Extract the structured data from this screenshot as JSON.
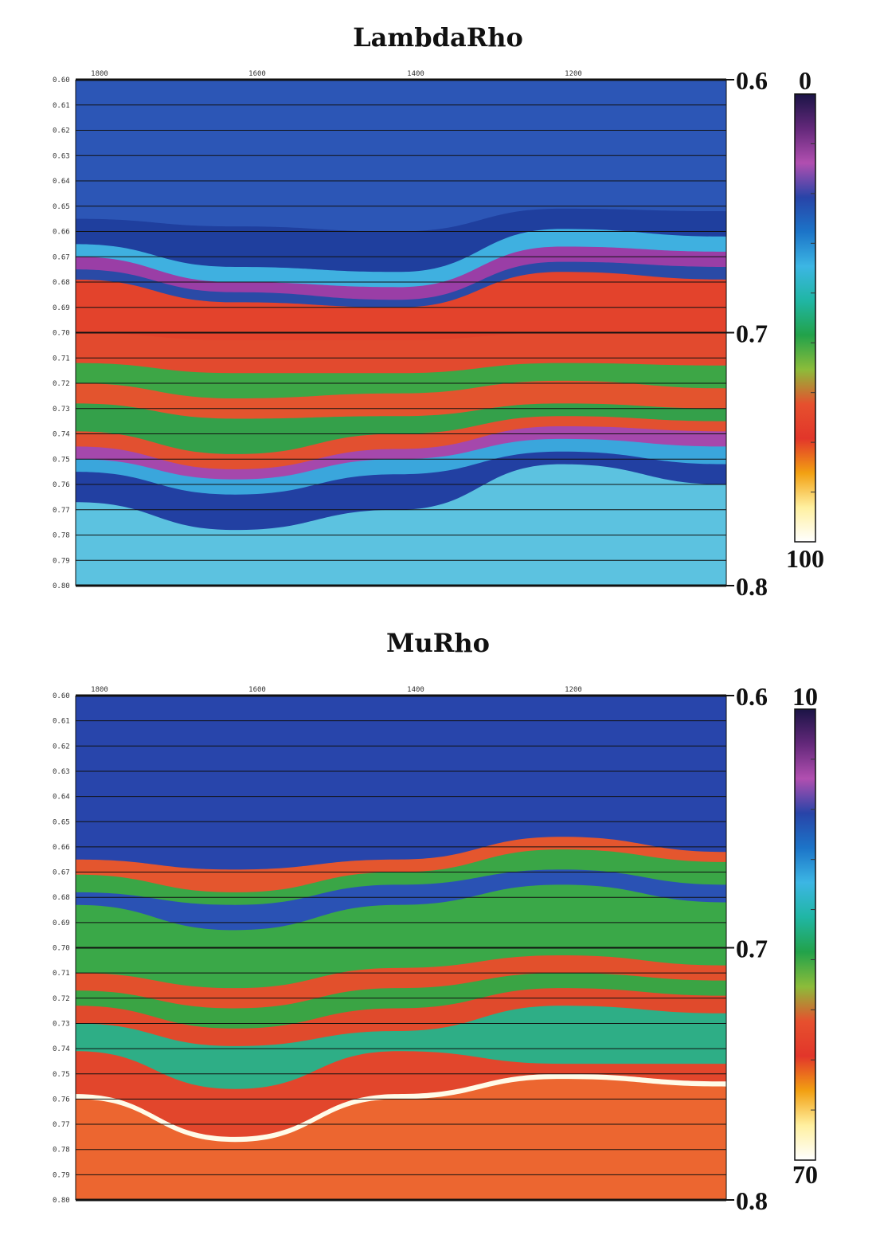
{
  "chart_data": [
    {
      "type": "heatmap",
      "title": "LambdaRho",
      "x_ticks": [
        "1800",
        "1600",
        "1400",
        "1200"
      ],
      "y_range": [
        0.6,
        0.8
      ],
      "y_ticks_small": [
        "0.60",
        "0.61",
        "0.62",
        "0.63",
        "0.64",
        "0.65",
        "0.66",
        "0.67",
        "0.68",
        "0.69",
        "0.70",
        "0.71",
        "0.72",
        "0.73",
        "0.74",
        "0.75",
        "0.76",
        "0.77",
        "0.78",
        "0.79",
        "0.80"
      ],
      "y_ticks_major": [
        "0.6",
        "0.7",
        "0.8"
      ],
      "colorbar": {
        "min": "0",
        "max": "100",
        "scale": [
          "#1b1446",
          "#63287a",
          "#b14fb0",
          "#2844a8",
          "#1c74c8",
          "#3cb6e4",
          "#20b6a4",
          "#22a24a",
          "#8cbc3a",
          "#e6502e",
          "#e2362a",
          "#f2a012",
          "#fff0a0",
          "#ffffff"
        ]
      },
      "layers": [
        {
          "y": [
            0.6,
            0.6,
            0.6,
            0.6,
            0.6
          ],
          "color": "#2c56b6"
        },
        {
          "y": [
            0.655,
            0.658,
            0.66,
            0.651,
            0.652
          ],
          "color": "#1f3f9e"
        },
        {
          "y": [
            0.665,
            0.674,
            0.676,
            0.659,
            0.662
          ],
          "color": "#3fb0e0"
        },
        {
          "y": [
            0.67,
            0.68,
            0.682,
            0.666,
            0.668
          ],
          "color": "#9a3ea6"
        },
        {
          "y": [
            0.675,
            0.684,
            0.687,
            0.672,
            0.674
          ],
          "color": "#2a4aa6"
        },
        {
          "y": [
            0.679,
            0.688,
            0.69,
            0.676,
            0.679
          ],
          "color": "#e3432c"
        },
        {
          "y": [
            0.7,
            0.703,
            0.703,
            0.7,
            0.7
          ],
          "color": "#e24a2e"
        },
        {
          "y": [
            0.712,
            0.716,
            0.716,
            0.712,
            0.713
          ],
          "color": "#3da646"
        },
        {
          "y": [
            0.72,
            0.726,
            0.724,
            0.719,
            0.722
          ],
          "color": "#e3542e"
        },
        {
          "y": [
            0.728,
            0.734,
            0.733,
            0.728,
            0.73
          ],
          "color": "#34a04a"
        },
        {
          "y": [
            0.739,
            0.748,
            0.74,
            0.733,
            0.735
          ],
          "color": "#e25030"
        },
        {
          "y": [
            0.745,
            0.754,
            0.746,
            0.737,
            0.739
          ],
          "color": "#a548ac"
        },
        {
          "y": [
            0.75,
            0.758,
            0.75,
            0.742,
            0.745
          ],
          "color": "#3aa6dc"
        },
        {
          "y": [
            0.755,
            0.764,
            0.756,
            0.747,
            0.752
          ],
          "color": "#2240a2"
        },
        {
          "y": [
            0.767,
            0.778,
            0.77,
            0.752,
            0.76
          ],
          "color": "#5cc2e0"
        }
      ]
    },
    {
      "type": "heatmap",
      "title": "MuRho",
      "x_ticks": [
        "1800",
        "1600",
        "1400",
        "1200"
      ],
      "y_range": [
        0.6,
        0.8
      ],
      "y_ticks_small": [
        "0.60",
        "0.61",
        "0.62",
        "0.63",
        "0.64",
        "0.65",
        "0.66",
        "0.67",
        "0.68",
        "0.69",
        "0.70",
        "0.71",
        "0.72",
        "0.73",
        "0.74",
        "0.75",
        "0.76",
        "0.77",
        "0.78",
        "0.79",
        "0.80"
      ],
      "y_ticks_major": [
        "0.6",
        "0.7",
        "0.8"
      ],
      "colorbar": {
        "min": "10",
        "max": "70",
        "scale": [
          "#1b1446",
          "#63287a",
          "#b14fb0",
          "#2844a8",
          "#1c74c8",
          "#3cb6e4",
          "#20b6a4",
          "#22a24a",
          "#8cbc3a",
          "#e6502e",
          "#e2362a",
          "#f2a012",
          "#fff0a0",
          "#ffffff"
        ]
      },
      "layers": [
        {
          "y": [
            0.6,
            0.6,
            0.6,
            0.6,
            0.6
          ],
          "color": "#2845ab"
        },
        {
          "y": [
            0.665,
            0.669,
            0.665,
            0.656,
            0.662
          ],
          "color": "#e4562e"
        },
        {
          "y": [
            0.671,
            0.678,
            0.67,
            0.661,
            0.666
          ],
          "color": "#3aa646"
        },
        {
          "y": [
            0.678,
            0.683,
            0.675,
            0.669,
            0.675
          ],
          "color": "#2a52b4"
        },
        {
          "y": [
            0.683,
            0.693,
            0.683,
            0.675,
            0.682
          ],
          "color": "#3aa848"
        },
        {
          "y": [
            0.71,
            0.716,
            0.708,
            0.703,
            0.707
          ],
          "color": "#e2502c"
        },
        {
          "y": [
            0.717,
            0.724,
            0.716,
            0.71,
            0.713
          ],
          "color": "#3aa444"
        },
        {
          "y": [
            0.723,
            0.732,
            0.724,
            0.716,
            0.719
          ],
          "color": "#e04a2c"
        },
        {
          "y": [
            0.73,
            0.739,
            0.733,
            0.723,
            0.726
          ],
          "color": "#2eae86"
        },
        {
          "y": [
            0.741,
            0.756,
            0.741,
            0.746,
            0.746
          ],
          "color": "#e2462c"
        },
        {
          "y": [
            0.758,
            0.775,
            0.758,
            0.75,
            0.753
          ],
          "color": "#fffbe8"
        },
        {
          "y": [
            0.76,
            0.777,
            0.76,
            0.752,
            0.755
          ],
          "color": "#ec6630"
        }
      ]
    }
  ]
}
